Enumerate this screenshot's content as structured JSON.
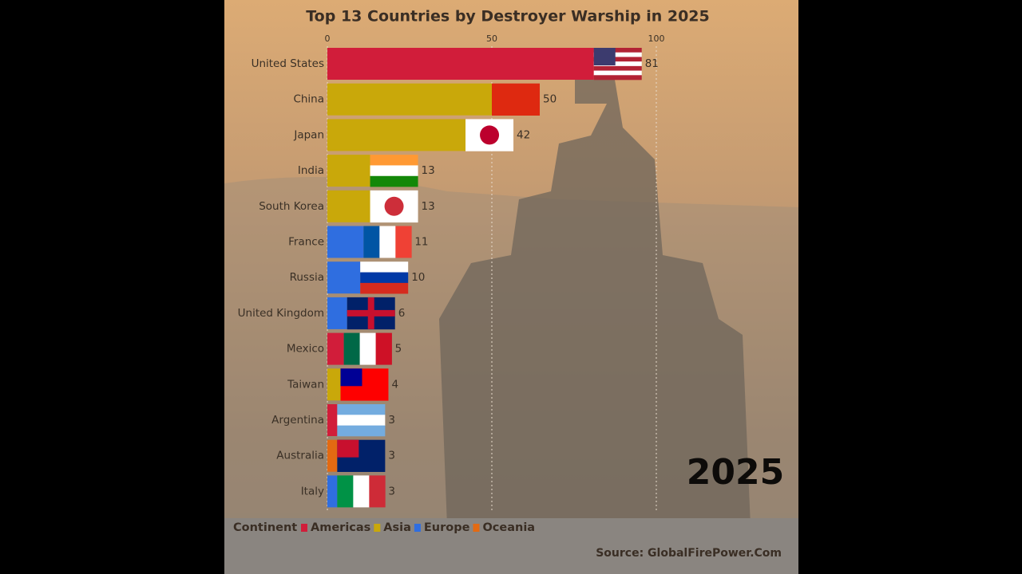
{
  "chart_data": {
    "type": "bar",
    "orientation": "horizontal",
    "title": "Top 13 Countries by Destroyer Warship in 2025",
    "categories": [
      "United States",
      "China",
      "Japan",
      "India",
      "South Korea",
      "France",
      "Russia",
      "United Kingdom",
      "Mexico",
      "Taiwan",
      "Argentina",
      "Australia",
      "Italy"
    ],
    "values": [
      81,
      50,
      42,
      13,
      13,
      11,
      10,
      6,
      5,
      4,
      3,
      3,
      3
    ],
    "colors": [
      "#d11d3a",
      "#c9a80a",
      "#c9a80a",
      "#c9a80a",
      "#c9a80a",
      "#2f6ee0",
      "#2f6ee0",
      "#2f6ee0",
      "#d11d3a",
      "#c9a80a",
      "#d11d3a",
      "#e36a12",
      "#2f6ee0"
    ],
    "xlim": [
      0,
      100
    ],
    "xticks": [
      0,
      50,
      100
    ],
    "grid": true,
    "legend": {
      "title": "Continent",
      "items": [
        {
          "name": "Americas",
          "color": "#d11d3a"
        },
        {
          "name": "Asia",
          "color": "#c9a80a"
        },
        {
          "name": "Europe",
          "color": "#2f6ee0"
        },
        {
          "name": "Oceania",
          "color": "#e36a12"
        }
      ]
    },
    "year_label": "2025",
    "source": "Source: GlobalFirePower.Com"
  }
}
